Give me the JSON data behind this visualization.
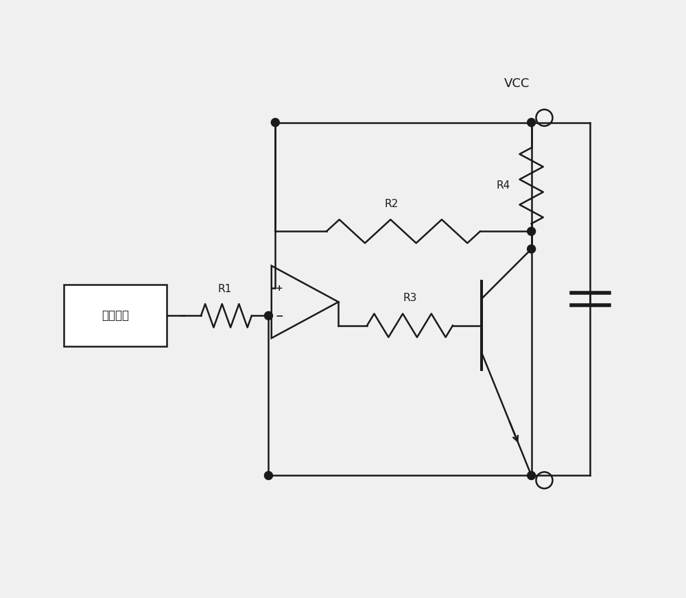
{
  "bg_color": "#f0f0f0",
  "line_color": "#1a1a1a",
  "line_width": 1.8,
  "vcc_label": "VCC",
  "ref_label": "参考电压",
  "r1_label": "R1",
  "r2_label": "R2",
  "r3_label": "R3",
  "r4_label": "R4"
}
